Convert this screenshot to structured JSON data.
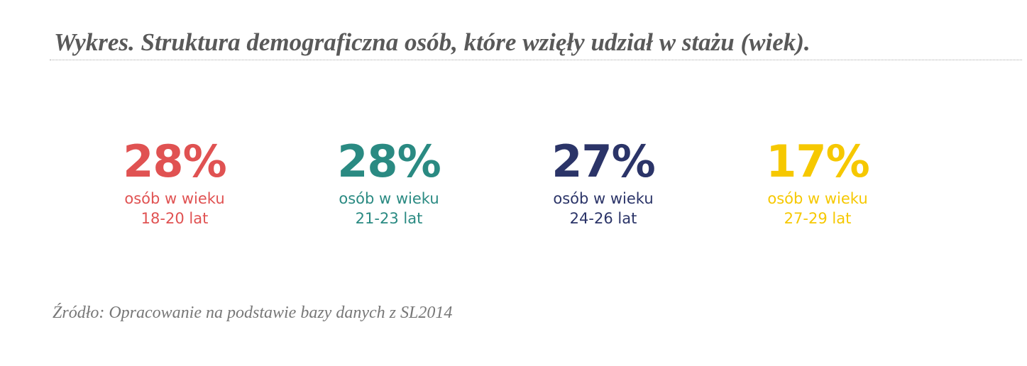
{
  "header": {
    "title": "Wykres. Struktura demograficzna osób, które wzięły udział w stażu (wiek)."
  },
  "items": [
    {
      "value": "28%",
      "line1": "osób w wieku",
      "line2": "18-20 lat",
      "color": "#e05252"
    },
    {
      "value": "28%",
      "line1": "osób w wieku",
      "line2": "21-23 lat",
      "color": "#2a8a82"
    },
    {
      "value": "27%",
      "line1": "osób w wieku",
      "line2": "24-26 lat",
      "color": "#2b3468"
    },
    {
      "value": "17%",
      "line1": "osób w wieku",
      "line2": "27-29 lat",
      "color": "#f6c800"
    }
  ],
  "footer": {
    "source": "Źródło: Opracowanie na podstawie bazy danych z SL2014"
  }
}
